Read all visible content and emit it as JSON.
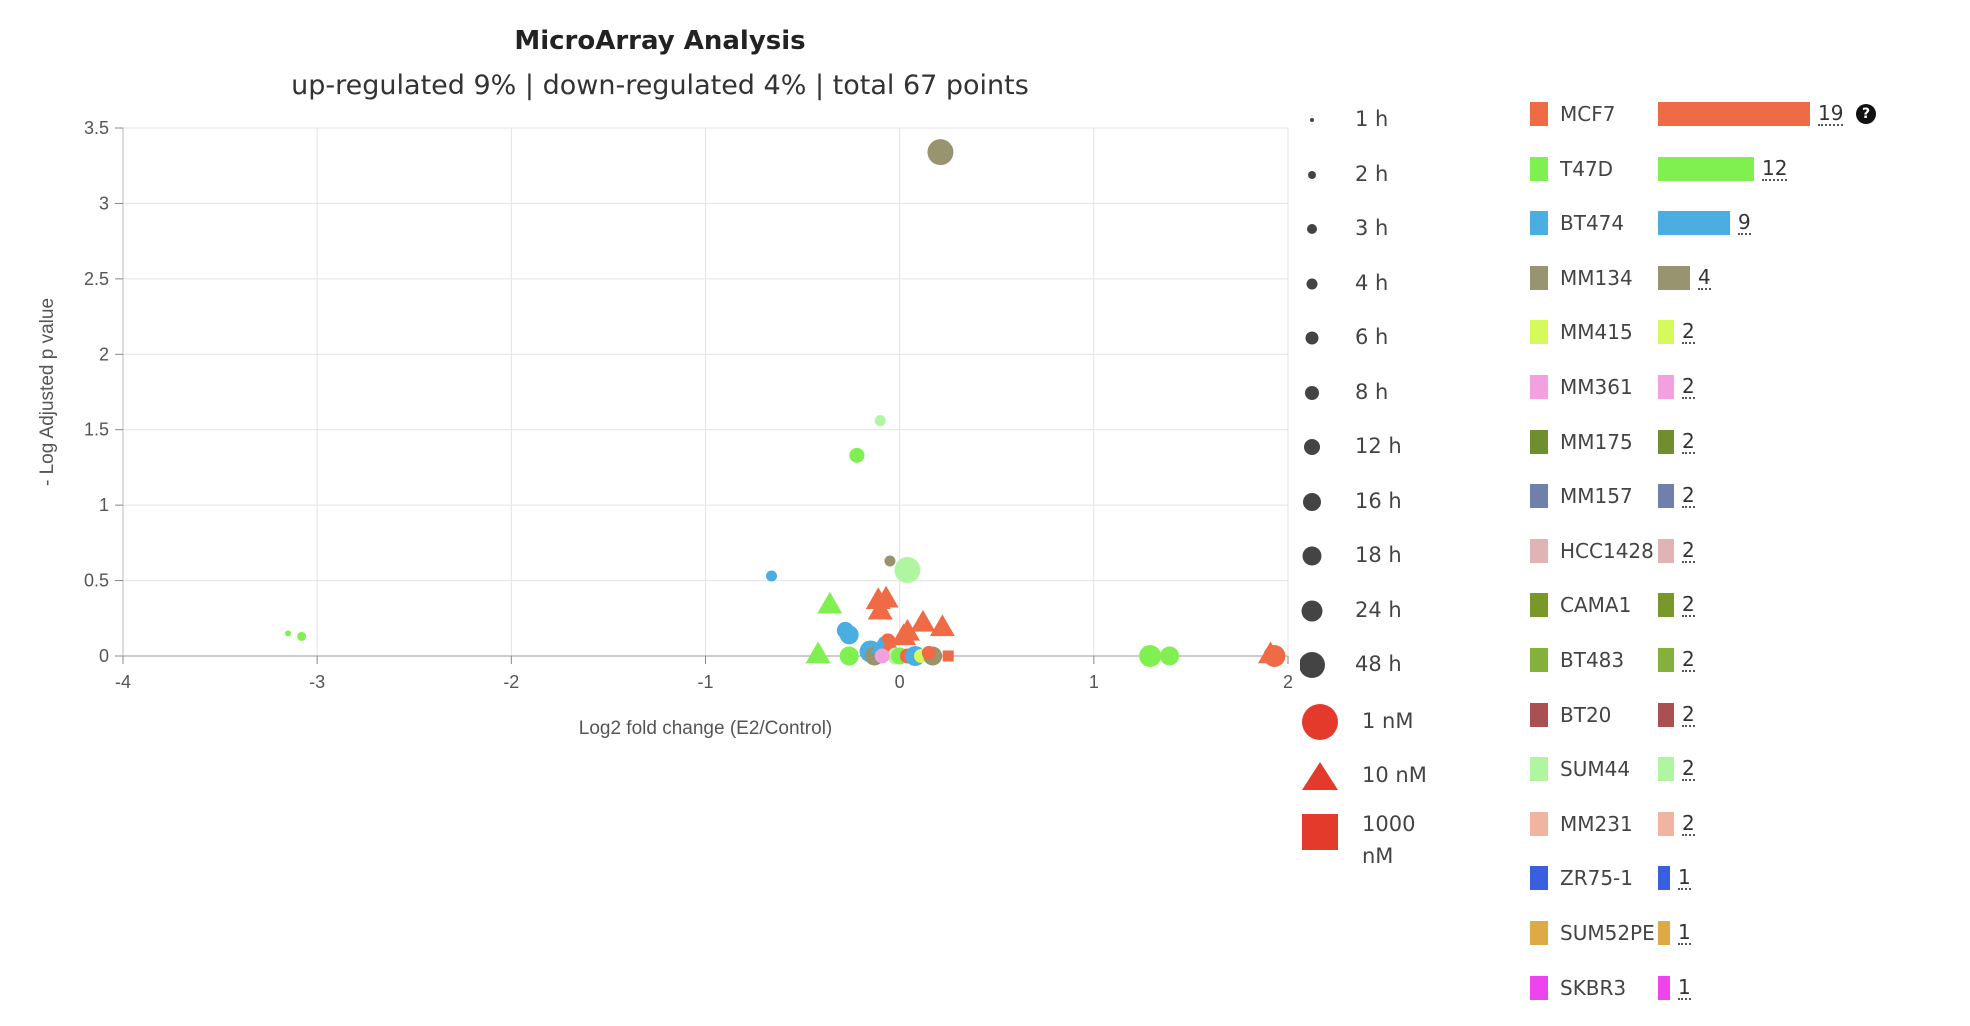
{
  "chart_data": {
    "type": "scatter",
    "title": "MicroArray Analysis",
    "subtitle": "up-regulated 9% | down-regulated 4% | total 67 points",
    "xlabel": "Log2 fold change (E2/Control)",
    "ylabel": "- Log Adjusted p value",
    "xlim": [
      -4,
      2
    ],
    "ylim": [
      0,
      3.5
    ],
    "xticks": [
      "-4",
      "-3",
      "-2",
      "-1",
      "0",
      "1",
      "2"
    ],
    "yticks": [
      "0",
      "0.5",
      "1",
      "1.5",
      "2",
      "2.5",
      "3",
      "3.5"
    ],
    "grid": true,
    "colors": {
      "MCF7": "#ee6b45",
      "T47D": "#80f050",
      "BT474": "#4aaee0",
      "MM134": "#999470",
      "MM415": "#d6fa5c",
      "MM361": "#f2a0e0",
      "MM175": "#6e8e30",
      "MM157": "#6f80aa",
      "HCC1428": "#e0b4b4",
      "CAMA1": "#7a982a",
      "BT483": "#84b03c",
      "BT20": "#aa5050",
      "SUM44": "#b0f5a0",
      "MM231": "#f0b4a0",
      "ZR75-1": "#3a5ee0",
      "SUM52PE": "#ddaa45",
      "SKBR3": "#ee44ee"
    },
    "points": [
      {
        "cell": "MM134",
        "x": 0.21,
        "y": 3.34,
        "time": "48 h",
        "dose": "1 nM"
      },
      {
        "cell": "SUM44",
        "x": -0.1,
        "y": 1.56,
        "time": "3 h",
        "dose": "1 nM"
      },
      {
        "cell": "T47D",
        "x": -0.22,
        "y": 1.33,
        "time": "8 h",
        "dose": "1 nM"
      },
      {
        "cell": "MM134",
        "x": -0.05,
        "y": 0.63,
        "time": "3 h",
        "dose": "1 nM"
      },
      {
        "cell": "SUM44",
        "x": 0.04,
        "y": 0.57,
        "time": "48 h",
        "dose": "1 nM"
      },
      {
        "cell": "BT474",
        "x": -0.66,
        "y": 0.53,
        "time": "3 h",
        "dose": "1 nM"
      },
      {
        "cell": "T47D",
        "x": -3.15,
        "y": 0.15,
        "time": "1 h",
        "dose": "1 nM"
      },
      {
        "cell": "T47D",
        "x": -3.08,
        "y": 0.13,
        "time": "2 h",
        "dose": "1 nM"
      },
      {
        "cell": "T47D",
        "x": -0.36,
        "y": 0.34,
        "time": "24 h",
        "dose": "10 nM"
      },
      {
        "cell": "MCF7",
        "x": -0.11,
        "y": 0.37,
        "time": "24 h",
        "dose": "10 nM"
      },
      {
        "cell": "MCF7",
        "x": -0.07,
        "y": 0.38,
        "time": "24 h",
        "dose": "10 nM"
      },
      {
        "cell": "MCF7",
        "x": -0.1,
        "y": 0.3,
        "time": "24 h",
        "dose": "10 nM"
      },
      {
        "cell": "MCF7",
        "x": 0.12,
        "y": 0.22,
        "time": "24 h",
        "dose": "10 nM"
      },
      {
        "cell": "MCF7",
        "x": 0.22,
        "y": 0.19,
        "time": "24 h",
        "dose": "10 nM"
      },
      {
        "cell": "MCF7",
        "x": 0.04,
        "y": 0.16,
        "time": "24 h",
        "dose": "10 nM"
      },
      {
        "cell": "MCF7",
        "x": 0.02,
        "y": 0.13,
        "time": "24 h",
        "dose": "10 nM"
      },
      {
        "cell": "BT474",
        "x": -0.28,
        "y": 0.17,
        "time": "12 h",
        "dose": "1 nM"
      },
      {
        "cell": "BT474",
        "x": -0.26,
        "y": 0.14,
        "time": "16 h",
        "dose": "1 nM"
      },
      {
        "cell": "MCF7",
        "x": -0.06,
        "y": 0.1,
        "time": "8 h",
        "dose": "1 nM"
      },
      {
        "cell": "T47D",
        "x": -0.42,
        "y": 0.01,
        "time": "24 h",
        "dose": "10 nM"
      },
      {
        "cell": "T47D",
        "x": -0.26,
        "y": 0.0,
        "time": "16 h",
        "dose": "1 nM"
      },
      {
        "cell": "BT474",
        "x": -0.15,
        "y": 0.03,
        "time": "24 h",
        "dose": "1 nM"
      },
      {
        "cell": "MM134",
        "x": -0.13,
        "y": 0.0,
        "time": "16 h",
        "dose": "1 nM"
      },
      {
        "cell": "BT474",
        "x": -0.1,
        "y": 0.06,
        "time": "12 h",
        "dose": "10 nM"
      },
      {
        "cell": "MCF7",
        "x": -0.05,
        "y": 0.05,
        "time": "24 h",
        "dose": "10 nM"
      },
      {
        "cell": "SUM44",
        "x": -0.02,
        "y": 0.0,
        "time": "12 h",
        "dose": "1 nM"
      },
      {
        "cell": "MM361",
        "x": -0.09,
        "y": 0.0,
        "time": "8 h",
        "dose": "1 nM"
      },
      {
        "cell": "T47D",
        "x": 0.0,
        "y": 0.0,
        "time": "12 h",
        "dose": "1 nM"
      },
      {
        "cell": "MCF7",
        "x": 0.04,
        "y": 0.0,
        "time": "8 h",
        "dose": "1 nM"
      },
      {
        "cell": "BT474",
        "x": 0.08,
        "y": 0.0,
        "time": "18 h",
        "dose": "1 nM"
      },
      {
        "cell": "MM415",
        "x": 0.11,
        "y": 0.0,
        "time": "6 h",
        "dose": "1 nM"
      },
      {
        "cell": "MM134",
        "x": 0.17,
        "y": 0.0,
        "time": "16 h",
        "dose": "1 nM"
      },
      {
        "cell": "MCF7",
        "x": 0.15,
        "y": 0.02,
        "time": "6 h",
        "dose": "1 nM"
      },
      {
        "cell": "MCF7",
        "x": 0.25,
        "y": 0.0,
        "time": "3 h",
        "dose": "1000 nM"
      },
      {
        "cell": "T47D",
        "x": 1.29,
        "y": 0.0,
        "time": "24 h",
        "dose": "1 nM"
      },
      {
        "cell": "T47D",
        "x": 1.39,
        "y": 0.0,
        "time": "16 h",
        "dose": "1 nM"
      },
      {
        "cell": "MCF7",
        "x": 1.91,
        "y": 0.01,
        "time": "24 h",
        "dose": "10 nM"
      },
      {
        "cell": "MCF7",
        "x": 1.93,
        "y": 0.0,
        "time": "24 h",
        "dose": "1 nM"
      }
    ],
    "size_legend": [
      {
        "label": "1 h"
      },
      {
        "label": "2 h"
      },
      {
        "label": "3 h"
      },
      {
        "label": "4 h"
      },
      {
        "label": "6 h"
      },
      {
        "label": "8 h"
      },
      {
        "label": "12 h"
      },
      {
        "label": "16 h"
      },
      {
        "label": "18 h"
      },
      {
        "label": "24 h"
      },
      {
        "label": "48 h"
      }
    ],
    "dose_legend": [
      {
        "label": "1 nM",
        "shape": "circle"
      },
      {
        "label": "10 nM",
        "shape": "triangle"
      },
      {
        "label": "1000 nM",
        "shape": "square"
      }
    ],
    "dose_legend_color": "#e43a2c",
    "cell_lines": [
      {
        "name": "MCF7",
        "count": 19
      },
      {
        "name": "T47D",
        "count": 12
      },
      {
        "name": "BT474",
        "count": 9
      },
      {
        "name": "MM134",
        "count": 4
      },
      {
        "name": "MM415",
        "count": 2
      },
      {
        "name": "MM361",
        "count": 2
      },
      {
        "name": "MM175",
        "count": 2
      },
      {
        "name": "MM157",
        "count": 2
      },
      {
        "name": "HCC1428",
        "count": 2
      },
      {
        "name": "CAMA1",
        "count": 2
      },
      {
        "name": "BT483",
        "count": 2
      },
      {
        "name": "BT20",
        "count": 2
      },
      {
        "name": "SUM44",
        "count": 2
      },
      {
        "name": "MM231",
        "count": 2
      },
      {
        "name": "ZR75-1",
        "count": 1
      },
      {
        "name": "SUM52PE",
        "count": 1
      },
      {
        "name": "SKBR3",
        "count": 1
      }
    ]
  },
  "help_icon": "question-circle-icon"
}
